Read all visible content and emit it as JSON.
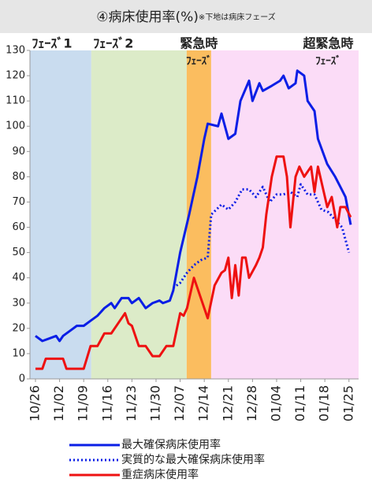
{
  "chart_data": {
    "type": "line",
    "title": "④病床使用率(%)",
    "subtitle": "※下地は病床フェーズ",
    "xlim": [
      -1.6,
      93.8
    ],
    "ylim": [
      0,
      130
    ],
    "yticks": [
      0,
      10,
      20,
      30,
      40,
      50,
      60,
      70,
      80,
      90,
      100,
      110,
      120,
      130
    ],
    "xticks": [
      {
        "value": 0,
        "label": "10/26"
      },
      {
        "value": 7,
        "label": "11/02"
      },
      {
        "value": 14,
        "label": "11/09"
      },
      {
        "value": 21,
        "label": "11/16"
      },
      {
        "value": 28,
        "label": "11/23"
      },
      {
        "value": 35,
        "label": "11/30"
      },
      {
        "value": 42,
        "label": "12/07"
      },
      {
        "value": 49,
        "label": "12/14"
      },
      {
        "value": 56,
        "label": "12/21"
      },
      {
        "value": 63,
        "label": "12/28"
      },
      {
        "value": 70,
        "label": "01/04"
      },
      {
        "value": 77,
        "label": "01/11"
      },
      {
        "value": 84,
        "label": "01/18"
      },
      {
        "value": 91,
        "label": "01/25"
      }
    ],
    "phases": [
      {
        "label": [
          "ﾌｪｰｽﾞ1"
        ],
        "start": -1.6,
        "end": 16.2,
        "color": "#c9dcef"
      },
      {
        "label": [
          "ﾌｪｰｽﾞ2"
        ],
        "start": 16.2,
        "end": 43.9,
        "color": "#dcebc8"
      },
      {
        "label": [
          "緊急時",
          "ﾌｪｰｽﾞ"
        ],
        "start": 43.9,
        "end": 51,
        "color": "#fbbd5f"
      },
      {
        "label": [
          "超緊急時",
          "ﾌｪｰｽﾞ"
        ],
        "start": 51,
        "end": 93.8,
        "color": "#fbdcf7"
      }
    ],
    "series": [
      {
        "name": "最大確保病床使用率",
        "color": "#0a1ee6",
        "line_style": "solid",
        "x": [
          0,
          2,
          4,
          6,
          7,
          8,
          10,
          12,
          14,
          16,
          18,
          20,
          22,
          23,
          25,
          27,
          28,
          30,
          32,
          34,
          36,
          37,
          39,
          40,
          42,
          44.6,
          47,
          49,
          50,
          53,
          54,
          56,
          58,
          59.5,
          62,
          63,
          65,
          66,
          68.6,
          71,
          72,
          73.5,
          75.5,
          76,
          78,
          79,
          81,
          82,
          84.7,
          87,
          88.5,
          90,
          91.5
        ],
        "values": [
          17,
          15,
          16,
          17,
          15,
          17,
          19,
          21,
          21,
          23,
          25,
          28,
          30,
          28,
          32,
          32,
          30,
          32,
          28,
          30,
          31,
          30,
          31,
          35,
          50,
          65,
          80,
          95,
          101,
          100,
          105,
          95,
          97,
          110,
          118,
          110,
          117,
          114,
          116,
          118,
          120,
          115,
          117,
          122,
          120,
          110,
          106,
          95,
          85,
          80,
          76,
          72,
          61
        ]
      },
      {
        "name": "実質的な最大確保病床使用率",
        "color": "#0a1ee6",
        "line_style": "dotted",
        "x": [
          40,
          42,
          44,
          46,
          48,
          50,
          51,
          54,
          56,
          58,
          60,
          62,
          64,
          66,
          68,
          70,
          72,
          74,
          76,
          77,
          79,
          81,
          83,
          85,
          87,
          89,
          91
        ],
        "values": [
          36,
          38,
          42,
          45,
          47,
          48,
          65,
          69,
          67,
          70,
          75,
          75,
          72,
          76,
          70,
          73,
          73,
          74,
          72,
          77,
          73,
          73,
          67,
          66,
          63,
          60,
          50
        ]
      },
      {
        "name": "重症病床使用率",
        "color": "#ee1111",
        "line_style": "solid",
        "x": [
          0,
          2,
          3,
          6,
          8,
          9,
          14,
          16,
          18,
          20,
          22,
          24,
          26,
          27,
          28,
          30,
          32,
          34,
          36,
          38,
          40,
          42,
          43,
          44,
          46,
          48,
          50,
          52,
          54,
          55,
          56,
          57,
          58,
          59,
          60,
          61,
          62,
          64,
          65,
          66,
          67,
          68.6,
          70,
          72,
          73,
          74,
          75.5,
          76.6,
          78,
          80,
          81,
          82,
          84.7,
          86,
          87.6,
          88.5,
          90,
          91.5
        ],
        "values": [
          4,
          4,
          8,
          8,
          8,
          4,
          4,
          13,
          13,
          18,
          18,
          22,
          26,
          22,
          21,
          13,
          13,
          9,
          9,
          13,
          13,
          26,
          25,
          28,
          40,
          32,
          24,
          37,
          42,
          43,
          48,
          32,
          45,
          33,
          48,
          48,
          40,
          45,
          48,
          52,
          65,
          80,
          88,
          88,
          80,
          60,
          80,
          84,
          80,
          84,
          74,
          84,
          68,
          72,
          60,
          68,
          68,
          64
        ]
      }
    ]
  }
}
